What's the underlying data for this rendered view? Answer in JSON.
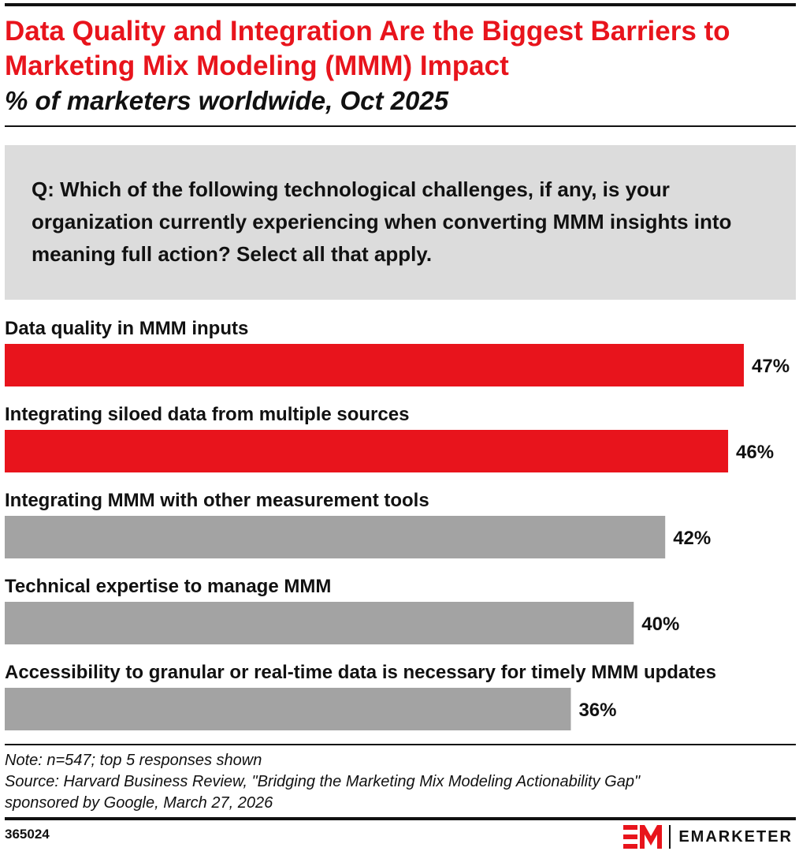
{
  "header": {
    "title": "Data Quality and Integration Are the Biggest Barriers to Marketing Mix Modeling (MMM) Impact",
    "subtitle": "% of marketers worldwide, Oct 2025"
  },
  "question": "Q: Which of the following technological challenges, if any, is your organization currently experiencing when converting MMM insights into meaning full action? Select all that apply.",
  "chart_data": {
    "type": "bar",
    "orientation": "horizontal",
    "categories": [
      "Data quality in MMM inputs",
      "Integrating siloed data from multiple sources",
      "Integrating MMM with other measurement tools",
      "Technical expertise to manage MMM",
      "Accessibility to granular or real-time data is necessary for timely MMM updates"
    ],
    "values": [
      47,
      46,
      42,
      40,
      36
    ],
    "value_labels": [
      "47%",
      "46%",
      "42%",
      "40%",
      "36%"
    ],
    "bar_colors": [
      "#e8141c",
      "#e8141c",
      "#a3a3a3",
      "#a3a3a3",
      "#a3a3a3"
    ],
    "grid": false,
    "legend": "none"
  },
  "notes": {
    "note": "Note: n=547; top 5 responses shown",
    "source_line1": "Source: Harvard Business Review, \"Bridging the Marketing Mix Modeling Actionability Gap\"",
    "source_line2": "sponsored by Google, March 27, 2026"
  },
  "footer": {
    "chart_id": "365024",
    "brand": "EMARKETER",
    "brand_color": "#e8141c"
  }
}
